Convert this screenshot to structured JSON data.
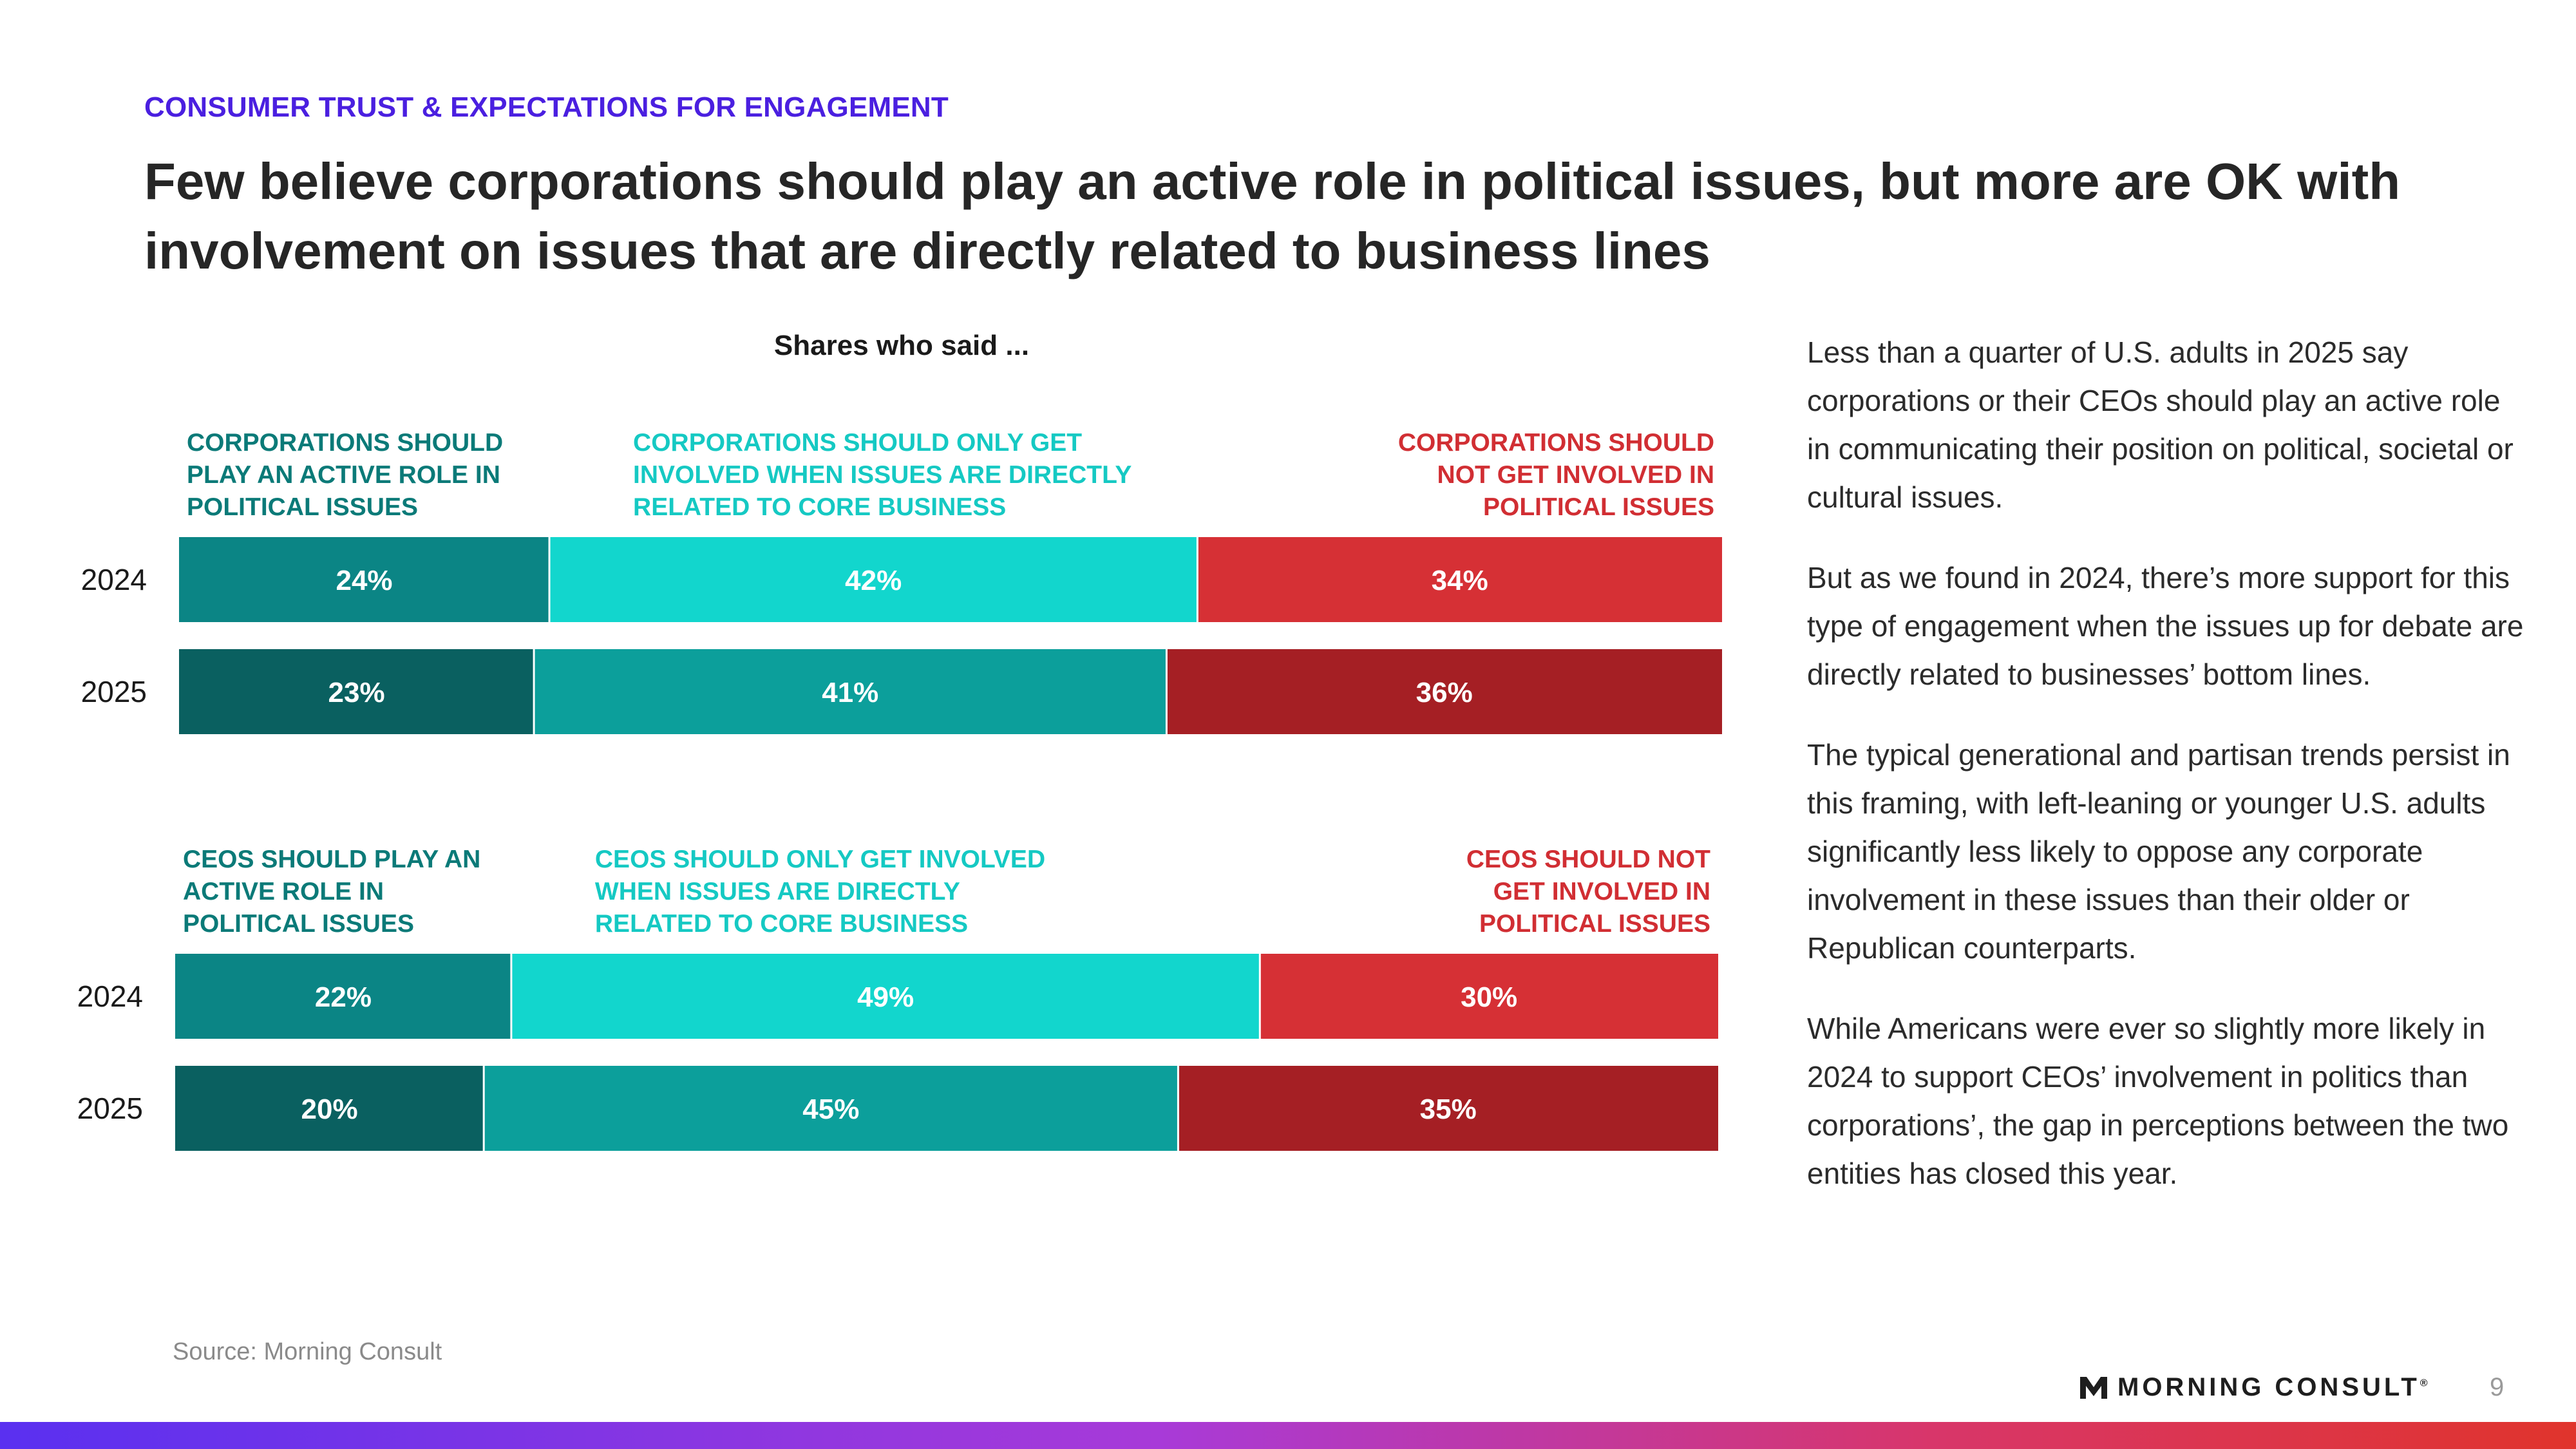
{
  "eyebrow": "CONSUMER TRUST & EXPECTATIONS FOR ENGAGEMENT",
  "headline": "Few believe corporations should play an active role in political issues, but more are OK with involvement on issues that are directly related to business lines",
  "source": "Source: Morning Consult",
  "brand": {
    "name": "MORNING CONSULT",
    "mark": "®",
    "logo_icon": "m-logo-icon"
  },
  "page_number": "9",
  "body_paragraphs": [
    "Less than a quarter of U.S. adults in 2025 say corporations or their CEOs should play an active role in communicating their position on political, societal or cultural issues.",
    "But as we found in 2024, there’s more support for this type of engagement when the issues up for debate are directly related to businesses’ bottom lines.",
    "The typical generational and partisan trends persist in this framing, with left-leaning or younger U.S. adults significantly less likely to oppose any corporate involvement in these issues than their older or Republican counterparts.",
    "While Americans were ever so slightly more likely in 2024 to support CEOs’ involvement in politics than corporations’, the gap in perceptions between the two entities has closed this year."
  ],
  "chart_data": {
    "type": "bar",
    "orientation": "horizontal",
    "stacked": true,
    "subtitle": "Shares who said ...",
    "unit": "%",
    "panels": [
      {
        "categories": [
          "2024",
          "2025"
        ],
        "series": [
          {
            "name": "CORPORATIONS SHOULD PLAY AN ACTIVE ROLE IN POLITICAL ISSUES",
            "name_lines": [
              "CORPORATIONS SHOULD",
              "PLAY AN ACTIVE ROLE IN",
              "POLITICAL ISSUES"
            ],
            "values": [
              24,
              23
            ],
            "colors": [
              "#0b8585",
              "#0a6060"
            ],
            "label_color": "#0b7a78",
            "label_align": "left"
          },
          {
            "name": "CORPORATIONS SHOULD ONLY GET INVOLVED WHEN ISSUES ARE DIRECTLY RELATED TO CORE BUSINESS",
            "name_lines": [
              "CORPORATIONS SHOULD ONLY GET",
              "INVOLVED WHEN ISSUES ARE DIRECTLY",
              "RELATED TO CORE BUSINESS"
            ],
            "values": [
              42,
              41
            ],
            "colors": [
              "#12d6cd",
              "#0c9f9b"
            ],
            "label_color": "#15c9c3",
            "label_align": "left"
          },
          {
            "name": "CORPORATIONS SHOULD NOT GET INVOLVED IN POLITICAL ISSUES",
            "name_lines": [
              "CORPORATIONS SHOULD",
              "NOT GET INVOLVED IN",
              "POLITICAL ISSUES"
            ],
            "values": [
              34,
              36
            ],
            "colors": [
              "#d63035",
              "#a51f24"
            ],
            "label_color": "#d12e33",
            "label_align": "right"
          }
        ]
      },
      {
        "categories": [
          "2024",
          "2025"
        ],
        "series": [
          {
            "name": "CEOS SHOULD PLAY AN ACTIVE ROLE IN POLITICAL ISSUES",
            "name_lines": [
              "CEOS SHOULD PLAY AN",
              "ACTIVE ROLE IN",
              "POLITICAL ISSUES"
            ],
            "values": [
              22,
              20
            ],
            "colors": [
              "#0b8585",
              "#0a6060"
            ],
            "label_color": "#0b7a78",
            "label_align": "left"
          },
          {
            "name": "CEOS SHOULD ONLY GET INVOLVED WHEN ISSUES ARE DIRECTLY RELATED TO CORE BUSINESS",
            "name_lines": [
              "CEOS SHOULD ONLY GET INVOLVED",
              "WHEN ISSUES ARE DIRECTLY",
              "RELATED TO CORE BUSINESS"
            ],
            "values": [
              49,
              45
            ],
            "colors": [
              "#12d6cd",
              "#0c9f9b"
            ],
            "label_color": "#15c9c3",
            "label_align": "left"
          },
          {
            "name": "CEOS SHOULD NOT GET INVOLVED IN POLITICAL ISSUES",
            "name_lines": [
              "CEOS SHOULD NOT",
              "GET INVOLVED IN",
              "POLITICAL ISSUES"
            ],
            "values": [
              30,
              35
            ],
            "colors": [
              "#d63035",
              "#a51f24"
            ],
            "label_color": "#d12e33",
            "label_align": "right"
          }
        ]
      }
    ]
  }
}
